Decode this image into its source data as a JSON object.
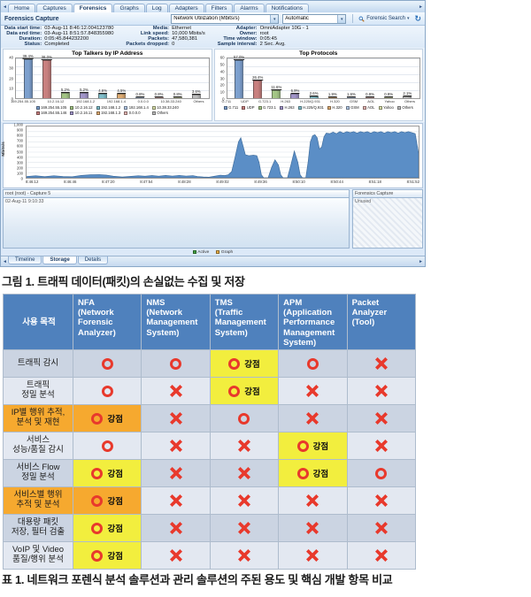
{
  "icons": {
    "scroll_left": "◄",
    "scroll_right": "►",
    "dropdown": "▾",
    "refresh": "↻"
  },
  "app": {
    "tabs": [
      "Home",
      "Captures",
      "Forensics",
      "Graphs",
      "Log",
      "Adapters",
      "Filters",
      "Alarms",
      "Notifications"
    ],
    "selected_tab": "Forensics",
    "toolbar": {
      "title": "Forensics Capture",
      "graph_type_combo": "Network Utilization (Mbits/s)",
      "range_combo": "Automatic",
      "search_button": "Forensic Search"
    },
    "info": {
      "groups": [
        [
          {
            "label": "Data start time:",
            "value": "03-Aug-11 8:46:12.004123780"
          },
          {
            "label": "Data end time:",
            "value": "03-Aug-11 8:51:57.848355980"
          },
          {
            "label": "Duration:",
            "value": "0:05:45.844232200"
          },
          {
            "label": "Status:",
            "value": "Completed"
          }
        ],
        [
          {
            "label": "Media:",
            "value": "Ethernet"
          },
          {
            "label": "Link speed:",
            "value": "10,000 Mbits/s"
          },
          {
            "label": "Packets:",
            "value": "47,580,381"
          },
          {
            "label": "Packets dropped:",
            "value": "0"
          }
        ],
        [
          {
            "label": "Adapter:",
            "value": "OmniAdapter 10G - 1"
          },
          {
            "label": "Owner:",
            "value": "root"
          },
          {
            "label": "Time window:",
            "value": "0:05:45"
          },
          {
            "label": "Sample interval:",
            "value": "2 Sec. Avg."
          }
        ]
      ]
    },
    "bottom": {
      "left_header": "root (root) - Capture 5",
      "left_text": "02-Aug-11 9:10:33",
      "right_header": "Forensics Capture",
      "right_text": "Unused",
      "legend": [
        {
          "label": "Active",
          "color": "#44a344"
        },
        {
          "label": "Graph",
          "color": "#e8b04a"
        }
      ],
      "tabs": [
        "Timeline",
        "Storage",
        "Details"
      ],
      "selected_tab": "Storage"
    }
  },
  "chart_data": [
    {
      "id": "top_talkers",
      "type": "bar",
      "title": "Top Talkers by IP Address",
      "ylim": [
        0,
        40
      ],
      "yticks": [
        0,
        10,
        20,
        30,
        40
      ],
      "legend_cols": 5,
      "legend_order": [
        0,
        2,
        4,
        6,
        8,
        1,
        3,
        5,
        7,
        9
      ],
      "bars": [
        {
          "label": "169.254.55.105",
          "pct": 39.4,
          "color": "#7da0ce"
        },
        {
          "label": "169.254.55.146",
          "pct": 38.0,
          "color": "#c8807f"
        },
        {
          "label": "10.2.16.12",
          "pct": 5.2,
          "color": "#a3c585"
        },
        {
          "label": "10.2.16.11",
          "pct": 5.2,
          "color": "#a195c9"
        },
        {
          "label": "192.168.1.2",
          "pct": 4.6,
          "color": "#7fbecb"
        },
        {
          "label": "192.168.1.3",
          "pct": 4.5,
          "color": "#ddab72"
        },
        {
          "label": "192.168.1.4",
          "pct": 0.8,
          "color": "#b2c9e6"
        },
        {
          "label": "0.0.0.0",
          "pct": 0.8,
          "color": "#e2b3b0"
        },
        {
          "label": "10.38.33.240",
          "pct": 0.8,
          "color": "#d9dfa9"
        },
        {
          "label": "Others",
          "pct": 3.6,
          "color": "#bcbcbc"
        }
      ],
      "xticks": [
        "169.254.55.105",
        "10.2.16.12",
        "192.168.1.2",
        "192.168.1.4",
        "0.0.0.0",
        "10.38.33.240",
        "Others"
      ]
    },
    {
      "id": "top_protocols",
      "type": "bar",
      "title": "Top Protocols",
      "ylim": [
        0,
        60
      ],
      "yticks": [
        0,
        10,
        20,
        30,
        40,
        50,
        60
      ],
      "legend_cols": 10,
      "legend_order": [
        0,
        1,
        2,
        3,
        4,
        5,
        6,
        7,
        8,
        9
      ],
      "bars": [
        {
          "label": "G.711",
          "pct": 57.0,
          "color": "#7da0ce"
        },
        {
          "label": "UDP",
          "pct": 26.4,
          "color": "#c8807f"
        },
        {
          "label": "G.723.1",
          "pct": 11.6,
          "color": "#a3c585"
        },
        {
          "label": "H.263",
          "pct": 6.9,
          "color": "#a195c9"
        },
        {
          "label": "H.225/Q.931",
          "pct": 2.6,
          "color": "#7fbecb"
        },
        {
          "label": "H.320",
          "pct": 1.9,
          "color": "#ddab72"
        },
        {
          "label": "GSM",
          "pct": 1.6,
          "color": "#b2c9e6"
        },
        {
          "label": "AOL",
          "pct": 0.9,
          "color": "#e2b3b0"
        },
        {
          "label": "Yahoo",
          "pct": 0.9,
          "color": "#d9dfa9"
        },
        {
          "label": "Others",
          "pct": 2.1,
          "color": "#bcbcbc"
        }
      ],
      "xticks": [
        "G.711",
        "UDP",
        "G.723.1",
        "H.263",
        "H.225/Q.931",
        "H.320",
        "GSM",
        "AOL",
        "Yahoo",
        "Others"
      ]
    },
    {
      "id": "network_utilization",
      "type": "area",
      "title": "",
      "ylabel": "Mbits/s",
      "ylim": [
        0,
        1000
      ],
      "yticks": [
        "0",
        "100",
        "200",
        "300",
        "400",
        "500",
        "600",
        "700",
        "800",
        "900",
        "1,000"
      ],
      "xticks": [
        "8:46:12",
        "8:46:46",
        "8:47:20",
        "8:47:54",
        "8:48:28",
        "8:49:02",
        "8:49:36",
        "8:50:10",
        "8:50:44",
        "8:51:18",
        "8:51:52"
      ],
      "xmax_seconds": 344,
      "fill": "#5b8ec6",
      "stroke": "#416f9f",
      "points": [
        [
          0,
          25
        ],
        [
          8,
          38
        ],
        [
          16,
          22
        ],
        [
          24,
          40
        ],
        [
          32,
          24
        ],
        [
          40,
          20
        ],
        [
          48,
          45
        ],
        [
          56,
          58
        ],
        [
          64,
          62
        ],
        [
          70,
          52
        ],
        [
          76,
          30
        ],
        [
          84,
          15
        ],
        [
          92,
          28
        ],
        [
          98,
          40
        ],
        [
          104,
          30
        ],
        [
          110,
          44
        ],
        [
          116,
          32
        ],
        [
          122,
          45
        ],
        [
          128,
          34
        ],
        [
          134,
          46
        ],
        [
          140,
          34
        ],
        [
          146,
          42
        ],
        [
          150,
          25
        ],
        [
          155,
          15
        ],
        [
          160,
          12
        ],
        [
          165,
          30
        ],
        [
          170,
          50
        ],
        [
          174,
          44
        ],
        [
          177,
          58
        ],
        [
          180,
          120
        ],
        [
          183,
          400
        ],
        [
          186,
          700
        ],
        [
          188,
          780
        ],
        [
          190,
          620
        ],
        [
          192,
          450
        ],
        [
          195,
          430
        ],
        [
          199,
          440
        ],
        [
          202,
          430
        ],
        [
          204,
          300
        ],
        [
          206,
          60
        ],
        [
          208,
          0
        ],
        [
          212,
          0
        ],
        [
          215,
          200
        ],
        [
          218,
          350
        ],
        [
          221,
          250
        ],
        [
          223,
          60
        ],
        [
          225,
          0
        ],
        [
          229,
          0
        ],
        [
          232,
          250
        ],
        [
          235,
          520
        ],
        [
          238,
          300
        ],
        [
          240,
          60
        ],
        [
          242,
          0
        ],
        [
          245,
          0
        ],
        [
          247,
          300
        ],
        [
          249,
          700
        ],
        [
          251,
          820
        ],
        [
          253,
          840
        ],
        [
          255,
          780
        ],
        [
          257,
          560
        ],
        [
          259,
          600
        ],
        [
          261,
          800
        ],
        [
          263,
          870
        ],
        [
          266,
          860
        ],
        [
          269,
          890
        ],
        [
          272,
          860
        ],
        [
          275,
          900
        ],
        [
          278,
          870
        ],
        [
          281,
          900
        ],
        [
          284,
          880
        ],
        [
          287,
          900
        ],
        [
          290,
          870
        ],
        [
          293,
          900
        ],
        [
          296,
          880
        ],
        [
          299,
          900
        ],
        [
          302,
          870
        ],
        [
          305,
          900
        ],
        [
          308,
          880
        ],
        [
          311,
          900
        ],
        [
          314,
          870
        ],
        [
          317,
          900
        ],
        [
          320,
          880
        ],
        [
          323,
          900
        ],
        [
          326,
          870
        ],
        [
          329,
          900
        ],
        [
          332,
          880
        ],
        [
          335,
          900
        ],
        [
          338,
          880
        ],
        [
          341,
          860
        ],
        [
          344,
          470
        ]
      ]
    }
  ],
  "figure_caption": "그림 1. 트래픽 데이터(패킷)의 손실없는 수집 및 저장",
  "table": {
    "strength_label": "강점",
    "columns": [
      "사용 목적",
      "NFA\n(Network\nForensic\nAnalyzer)",
      "NMS\n(Network\nManagement\nSystem)",
      "TMS\n(Traffic\nManagement\nSystem)",
      "APM\n(Application\nPerformance\nManagement\nSystem)",
      "Packet\nAnalyzer\n(Tool)"
    ],
    "rows": [
      {
        "label": "트래픽 감시",
        "label_bg": null,
        "cells": [
          {
            "mark": "O"
          },
          {
            "mark": "O"
          },
          {
            "mark": "O",
            "strength": true,
            "bg": "yellow"
          },
          {
            "mark": "O"
          },
          {
            "mark": "X"
          }
        ]
      },
      {
        "label": "트래픽\n정밀 분석",
        "label_bg": null,
        "cells": [
          {
            "mark": "O"
          },
          {
            "mark": "X"
          },
          {
            "mark": "O",
            "strength": true,
            "bg": "yellow"
          },
          {
            "mark": "X"
          },
          {
            "mark": "X"
          }
        ]
      },
      {
        "label": "IP별 행위 추적,\n분석 및 재현",
        "label_bg": "orange",
        "cells": [
          {
            "mark": "O",
            "strength": true,
            "bg": "orange"
          },
          {
            "mark": "X"
          },
          {
            "mark": "O"
          },
          {
            "mark": "X"
          },
          {
            "mark": "X"
          }
        ]
      },
      {
        "label": "서비스\n성능/품질 감시",
        "label_bg": null,
        "cells": [
          {
            "mark": "O"
          },
          {
            "mark": "X"
          },
          {
            "mark": "X"
          },
          {
            "mark": "O",
            "strength": true,
            "bg": "yellow"
          },
          {
            "mark": "X"
          }
        ]
      },
      {
        "label": "서비스 Flow\n정밀 분석",
        "label_bg": null,
        "cells": [
          {
            "mark": "O",
            "strength": true,
            "bg": "yellow"
          },
          {
            "mark": "X"
          },
          {
            "mark": "X"
          },
          {
            "mark": "O",
            "strength": true,
            "bg": "yellow"
          },
          {
            "mark": "O"
          }
        ]
      },
      {
        "label": "서비스별 행위\n추적 및 분석",
        "label_bg": "orange",
        "cells": [
          {
            "mark": "O",
            "strength": true,
            "bg": "orange"
          },
          {
            "mark": "X"
          },
          {
            "mark": "X"
          },
          {
            "mark": "X"
          },
          {
            "mark": "X"
          }
        ]
      },
      {
        "label": "대용량 패킷\n저장, 필터 검출",
        "label_bg": null,
        "cells": [
          {
            "mark": "O",
            "strength": true,
            "bg": "yellow"
          },
          {
            "mark": "X"
          },
          {
            "mark": "X"
          },
          {
            "mark": "X"
          },
          {
            "mark": "X"
          }
        ]
      },
      {
        "label": "VoIP 및 Video\n품질/행위 분석",
        "label_bg": null,
        "cells": [
          {
            "mark": "O",
            "strength": true,
            "bg": "yellow"
          },
          {
            "mark": "X"
          },
          {
            "mark": "X"
          },
          {
            "mark": "X"
          },
          {
            "mark": "X"
          }
        ]
      }
    ]
  },
  "table_caption": "표 1. 네트워크 포렌식 분석 솔루션과 관리 솔루션의 주된 용도 및 핵심 개발 항목 비교"
}
